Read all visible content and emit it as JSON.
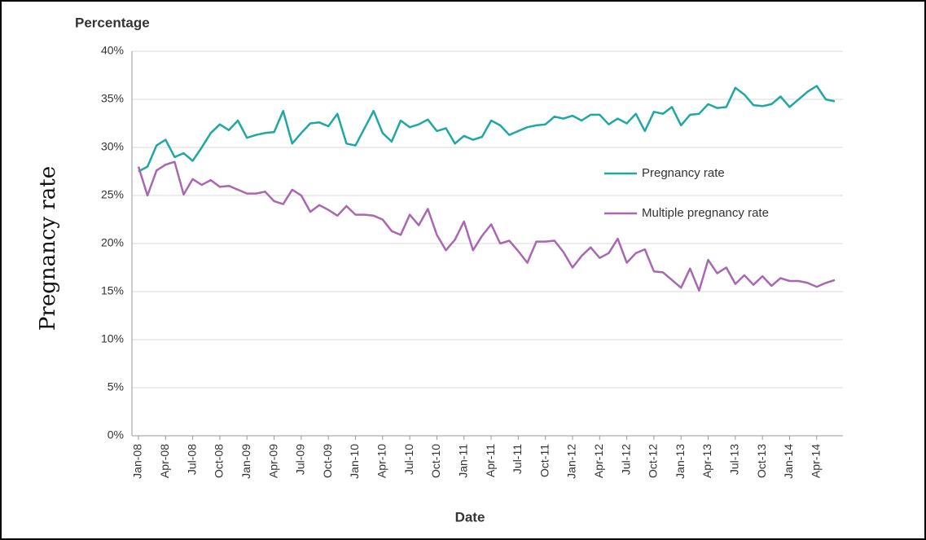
{
  "chart_data": {
    "type": "line",
    "axis_title": "Percentage",
    "ylabel": "Pregnancy rate",
    "xlabel": "Date",
    "categories": [
      "Jan-08",
      null,
      null,
      "Apr-08",
      null,
      null,
      "Jul-08",
      null,
      null,
      "Oct-08",
      null,
      null,
      "Jan-09",
      null,
      null,
      "Apr-09",
      null,
      null,
      "Jul-09",
      null,
      null,
      "Oct-09",
      null,
      null,
      "Jan-10",
      null,
      null,
      "Apr-10",
      null,
      null,
      "Jul-10",
      null,
      null,
      "Oct-10",
      null,
      null,
      "Jan-11",
      null,
      null,
      "Apr-11",
      null,
      null,
      "Jul-11",
      null,
      null,
      "Oct-11",
      null,
      null,
      "Jan-12",
      null,
      null,
      "Apr-12",
      null,
      null,
      "Jul-12",
      null,
      null,
      "Oct-12",
      null,
      null,
      "Jan-13",
      null,
      null,
      "Apr-13",
      null,
      null,
      "Jul-13",
      null,
      null,
      "Oct-13",
      null,
      null,
      "Jan-14",
      null,
      null,
      "Apr-14",
      null,
      null
    ],
    "series": [
      {
        "name": "Pregnancy rate",
        "color": "#1fa8a3",
        "values": [
          27.5,
          28,
          30.2,
          30.8,
          29,
          29.4,
          28.6,
          30,
          31.5,
          32.4,
          31.8,
          32.8,
          31,
          31.3,
          31.5,
          31.6,
          33.8,
          30.4,
          31.5,
          32.5,
          32.6,
          32.2,
          33.5,
          30.4,
          30.2,
          32,
          33.8,
          31.5,
          30.6,
          32.8,
          32.1,
          32.4,
          32.9,
          31.7,
          32,
          30.4,
          31.2,
          30.8,
          31.1,
          32.8,
          32.3,
          31.3,
          31.7,
          32.1,
          32.3,
          32.4,
          33.2,
          33,
          33.3,
          32.8,
          33.4,
          33.4,
          32.4,
          33,
          32.5,
          33.5,
          31.7,
          33.7,
          33.5,
          34.2,
          32.3,
          33.4,
          33.5,
          34.5,
          34.1,
          34.2,
          36.2,
          35.5,
          34.4,
          34.3,
          34.5,
          35.3,
          34.2,
          35,
          35.8,
          36.4,
          35,
          34.8
        ]
      },
      {
        "name": "Multiple pregnancy rate",
        "color": "#a867b0",
        "values": [
          28,
          25,
          27.6,
          28.2,
          28.5,
          25.1,
          26.7,
          26.1,
          26.6,
          25.9,
          26,
          25.6,
          25.2,
          25.2,
          25.4,
          24.4,
          24.1,
          25.6,
          25,
          23.3,
          24,
          23.5,
          22.9,
          23.9,
          23,
          23,
          22.9,
          22.5,
          21.3,
          20.9,
          23,
          21.9,
          23.6,
          20.9,
          19.3,
          20.4,
          22.3,
          19.3,
          20.8,
          22,
          20,
          20.3,
          19.2,
          18,
          20.2,
          20.2,
          20.3,
          19.1,
          17.5,
          18.7,
          19.6,
          18.5,
          19,
          20.5,
          18,
          19,
          19.4,
          17.1,
          17,
          16.2,
          15.4,
          17.4,
          15.1,
          18.3,
          16.9,
          17.5,
          15.8,
          16.7,
          15.7,
          16.6,
          15.6,
          16.4,
          16.1,
          16.1,
          15.9,
          15.5,
          15.9,
          16.2
        ]
      }
    ],
    "ylim": [
      0,
      40
    ],
    "yticks": [
      {
        "value": 0,
        "label": "0%"
      },
      {
        "value": 5,
        "label": "5%"
      },
      {
        "value": 10,
        "label": "10%"
      },
      {
        "value": 15,
        "label": "15%"
      },
      {
        "value": 20,
        "label": "20%"
      },
      {
        "value": 25,
        "label": "25%"
      },
      {
        "value": 30,
        "label": "30%"
      },
      {
        "value": 35,
        "label": "35%"
      },
      {
        "value": 40,
        "label": "40%"
      }
    ],
    "grid": true,
    "legend": "right"
  }
}
